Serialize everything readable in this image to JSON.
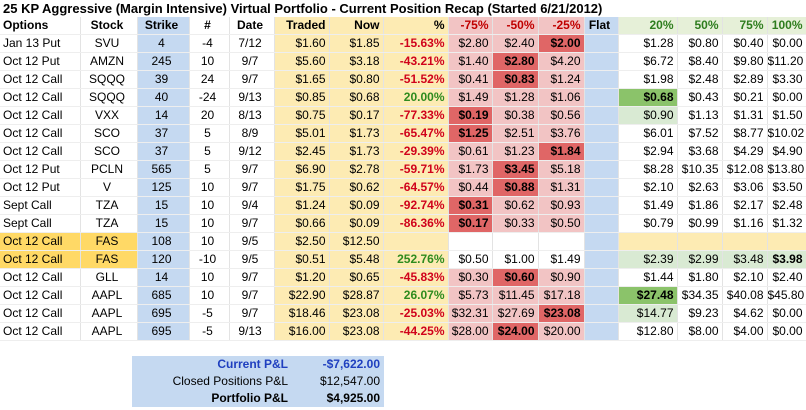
{
  "title": "25 KP Aggressive (Margin Intensive) Virtual Portfolio - Current Position Recap (Started 6/21/2012)",
  "headers": [
    "Options",
    "Stock",
    "Strike",
    "#",
    "Date",
    "Traded",
    "Now",
    "%",
    "-75%",
    "-50%",
    "-25%",
    "Flat",
    "20%",
    "50%",
    "75%",
    "100%"
  ],
  "rows": [
    [
      "Jan 13 Put",
      "SVU",
      "4",
      "-4",
      "7/12",
      "$1.60",
      "$1.85",
      "-15.63%",
      "$2.80",
      "$2.40",
      "$2.00",
      "",
      "$1.28",
      "$0.80",
      "$0.40",
      "$0.00"
    ],
    [
      "Oct 12 Put",
      "AMZN",
      "245",
      "10",
      "9/7",
      "$5.60",
      "$3.18",
      "-43.21%",
      "$1.40",
      "$2.80",
      "$4.20",
      "",
      "$6.72",
      "$8.40",
      "$9.80",
      "$11.20"
    ],
    [
      "Oct 12 Call",
      "SQQQ",
      "39",
      "24",
      "9/7",
      "$1.65",
      "$0.80",
      "-51.52%",
      "$0.41",
      "$0.83",
      "$1.24",
      "",
      "$1.98",
      "$2.48",
      "$2.89",
      "$3.30"
    ],
    [
      "Oct 12 Call",
      "SQQQ",
      "40",
      "-24",
      "9/13",
      "$0.85",
      "$0.68",
      "20.00%",
      "$1.49",
      "$1.28",
      "$1.06",
      "",
      "$0.68",
      "$0.43",
      "$0.21",
      "$0.00"
    ],
    [
      "Oct 12 Call",
      "VXX",
      "14",
      "20",
      "8/13",
      "$0.75",
      "$0.17",
      "-77.33%",
      "$0.19",
      "$0.38",
      "$0.56",
      "",
      "$0.90",
      "$1.13",
      "$1.31",
      "$1.50"
    ],
    [
      "Oct 12 Call",
      "SCO",
      "37",
      "5",
      "8/9",
      "$5.01",
      "$1.73",
      "-65.47%",
      "$1.25",
      "$2.51",
      "$3.76",
      "",
      "$6.01",
      "$7.52",
      "$8.77",
      "$10.02"
    ],
    [
      "Oct 12 Call",
      "SCO",
      "37",
      "5",
      "9/12",
      "$2.45",
      "$1.73",
      "-29.39%",
      "$0.61",
      "$1.23",
      "$1.84",
      "",
      "$2.94",
      "$3.68",
      "$4.29",
      "$4.90"
    ],
    [
      "Oct 12 Put",
      "PCLN",
      "565",
      "5",
      "9/7",
      "$6.90",
      "$2.78",
      "-59.71%",
      "$1.73",
      "$3.45",
      "$5.18",
      "",
      "$8.28",
      "$10.35",
      "$12.08",
      "$13.80"
    ],
    [
      "Oct 12 Put",
      "V",
      "125",
      "10",
      "9/7",
      "$1.75",
      "$0.62",
      "-64.57%",
      "$0.44",
      "$0.88",
      "$1.31",
      "",
      "$2.10",
      "$2.63",
      "$3.06",
      "$3.50"
    ],
    [
      "Sept Call",
      "TZA",
      "15",
      "10",
      "9/4",
      "$1.24",
      "$0.09",
      "-92.74%",
      "$0.31",
      "$0.62",
      "$0.93",
      "",
      "$1.49",
      "$1.86",
      "$2.17",
      "$2.48"
    ],
    [
      "Sept Call",
      "TZA",
      "15",
      "10",
      "9/7",
      "$0.66",
      "$0.09",
      "-86.36%",
      "$0.17",
      "$0.33",
      "$0.50",
      "",
      "$0.79",
      "$0.99",
      "$1.16",
      "$1.32"
    ],
    [
      "Oct 12 Call",
      "FAS",
      "108",
      "10",
      "9/5",
      "$2.50",
      "$12.50",
      "",
      "",
      "",
      "",
      "",
      "",
      "",
      "",
      ""
    ],
    [
      "Oct 12 Call",
      "FAS",
      "120",
      "-10",
      "9/5",
      "$0.51",
      "$5.48",
      "252.76%",
      "$0.50",
      "$1.00",
      "$1.49",
      "",
      "$2.39",
      "$2.99",
      "$3.48",
      "$3.98"
    ],
    [
      "Oct 12 Call",
      "GLL",
      "14",
      "10",
      "9/7",
      "$1.20",
      "$0.65",
      "-45.83%",
      "$0.30",
      "$0.60",
      "$0.90",
      "",
      "$1.44",
      "$1.80",
      "$2.10",
      "$2.40"
    ],
    [
      "Oct 12 Call",
      "AAPL",
      "685",
      "10",
      "9/7",
      "$22.90",
      "$28.87",
      "26.07%",
      "$5.73",
      "$11.45",
      "$17.18",
      "",
      "$27.48",
      "$34.35",
      "$40.08",
      "$45.80"
    ],
    [
      "Oct 12 Call",
      "AAPL",
      "695",
      "-5",
      "9/7",
      "$18.46",
      "$23.08",
      "-25.03%",
      "$32.31",
      "$27.69",
      "$23.08",
      "",
      "$14.77",
      "$9.23",
      "$4.62",
      "$0.00"
    ],
    [
      "Oct 12 Call",
      "AAPL",
      "695",
      "-5",
      "9/13",
      "$16.00",
      "$23.08",
      "-44.25%",
      "$28.00",
      "$24.00",
      "$20.00",
      "",
      "$12.80",
      "$8.00",
      "$4.00",
      "$0.00"
    ]
  ],
  "highlights": {
    "red": [
      [
        0,
        10
      ],
      [
        1,
        9
      ],
      [
        2,
        9
      ],
      [
        4,
        8
      ],
      [
        5,
        8
      ],
      [
        6,
        10
      ],
      [
        7,
        9
      ],
      [
        8,
        9
      ],
      [
        9,
        8
      ],
      [
        10,
        8
      ],
      [
        13,
        9
      ],
      [
        15,
        10
      ],
      [
        16,
        9
      ]
    ],
    "green": [
      [
        3,
        12
      ],
      [
        12,
        15
      ],
      [
        14,
        12
      ]
    ],
    "lightgreen": [
      [
        4,
        12
      ],
      [
        15,
        12
      ]
    ],
    "yellow_rows": [
      11,
      12
    ]
  },
  "summary": {
    "current_label": "Current P&L",
    "current_value": "-$7,622.00",
    "closed_label": "Closed Positions P&L",
    "closed_value": "$12,547.00",
    "portfolio_label": "Portfolio P&L",
    "portfolio_value": "$4,925.00"
  }
}
